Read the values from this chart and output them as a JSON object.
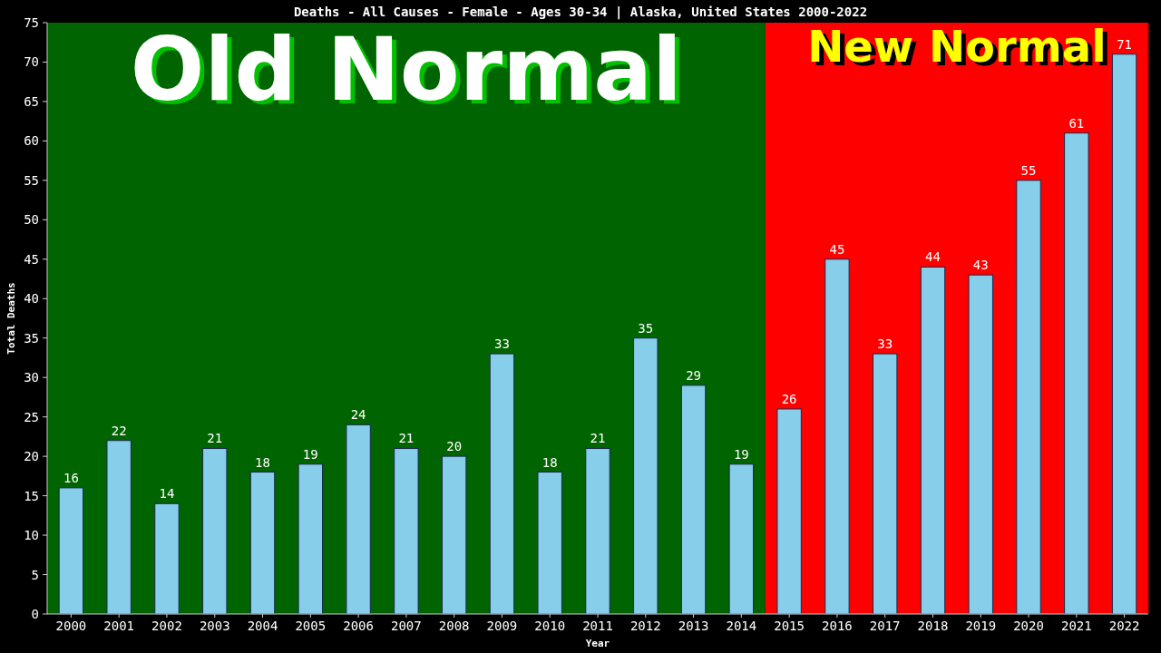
{
  "chart_data": {
    "type": "bar",
    "title": "Deaths - All Causes - Female - Ages 30-34 | Alaska, United States 2000-2022",
    "xlabel": "Year",
    "ylabel": "Total Deaths",
    "categories": [
      "2000",
      "2001",
      "2002",
      "2003",
      "2004",
      "2005",
      "2006",
      "2007",
      "2008",
      "2009",
      "2010",
      "2011",
      "2012",
      "2013",
      "2014",
      "2015",
      "2016",
      "2017",
      "2018",
      "2019",
      "2020",
      "2021",
      "2022"
    ],
    "values": [
      16,
      22,
      14,
      21,
      18,
      19,
      24,
      21,
      20,
      33,
      18,
      21,
      35,
      29,
      19,
      26,
      45,
      33,
      44,
      43,
      55,
      61,
      71
    ],
    "color": "#87ceeb",
    "ylim": [
      0,
      75
    ],
    "yticks": [
      0,
      5,
      10,
      15,
      20,
      25,
      30,
      35,
      40,
      45,
      50,
      55,
      60,
      65,
      70,
      75
    ],
    "data_labels": true,
    "bands": [
      {
        "axis": "x",
        "from": "2000",
        "to": "2014",
        "label": "Old Normal",
        "color": "#006400"
      },
      {
        "axis": "x",
        "from": "2015",
        "to": "2022",
        "label": "New Normal",
        "color": "#ff0000"
      }
    ]
  }
}
